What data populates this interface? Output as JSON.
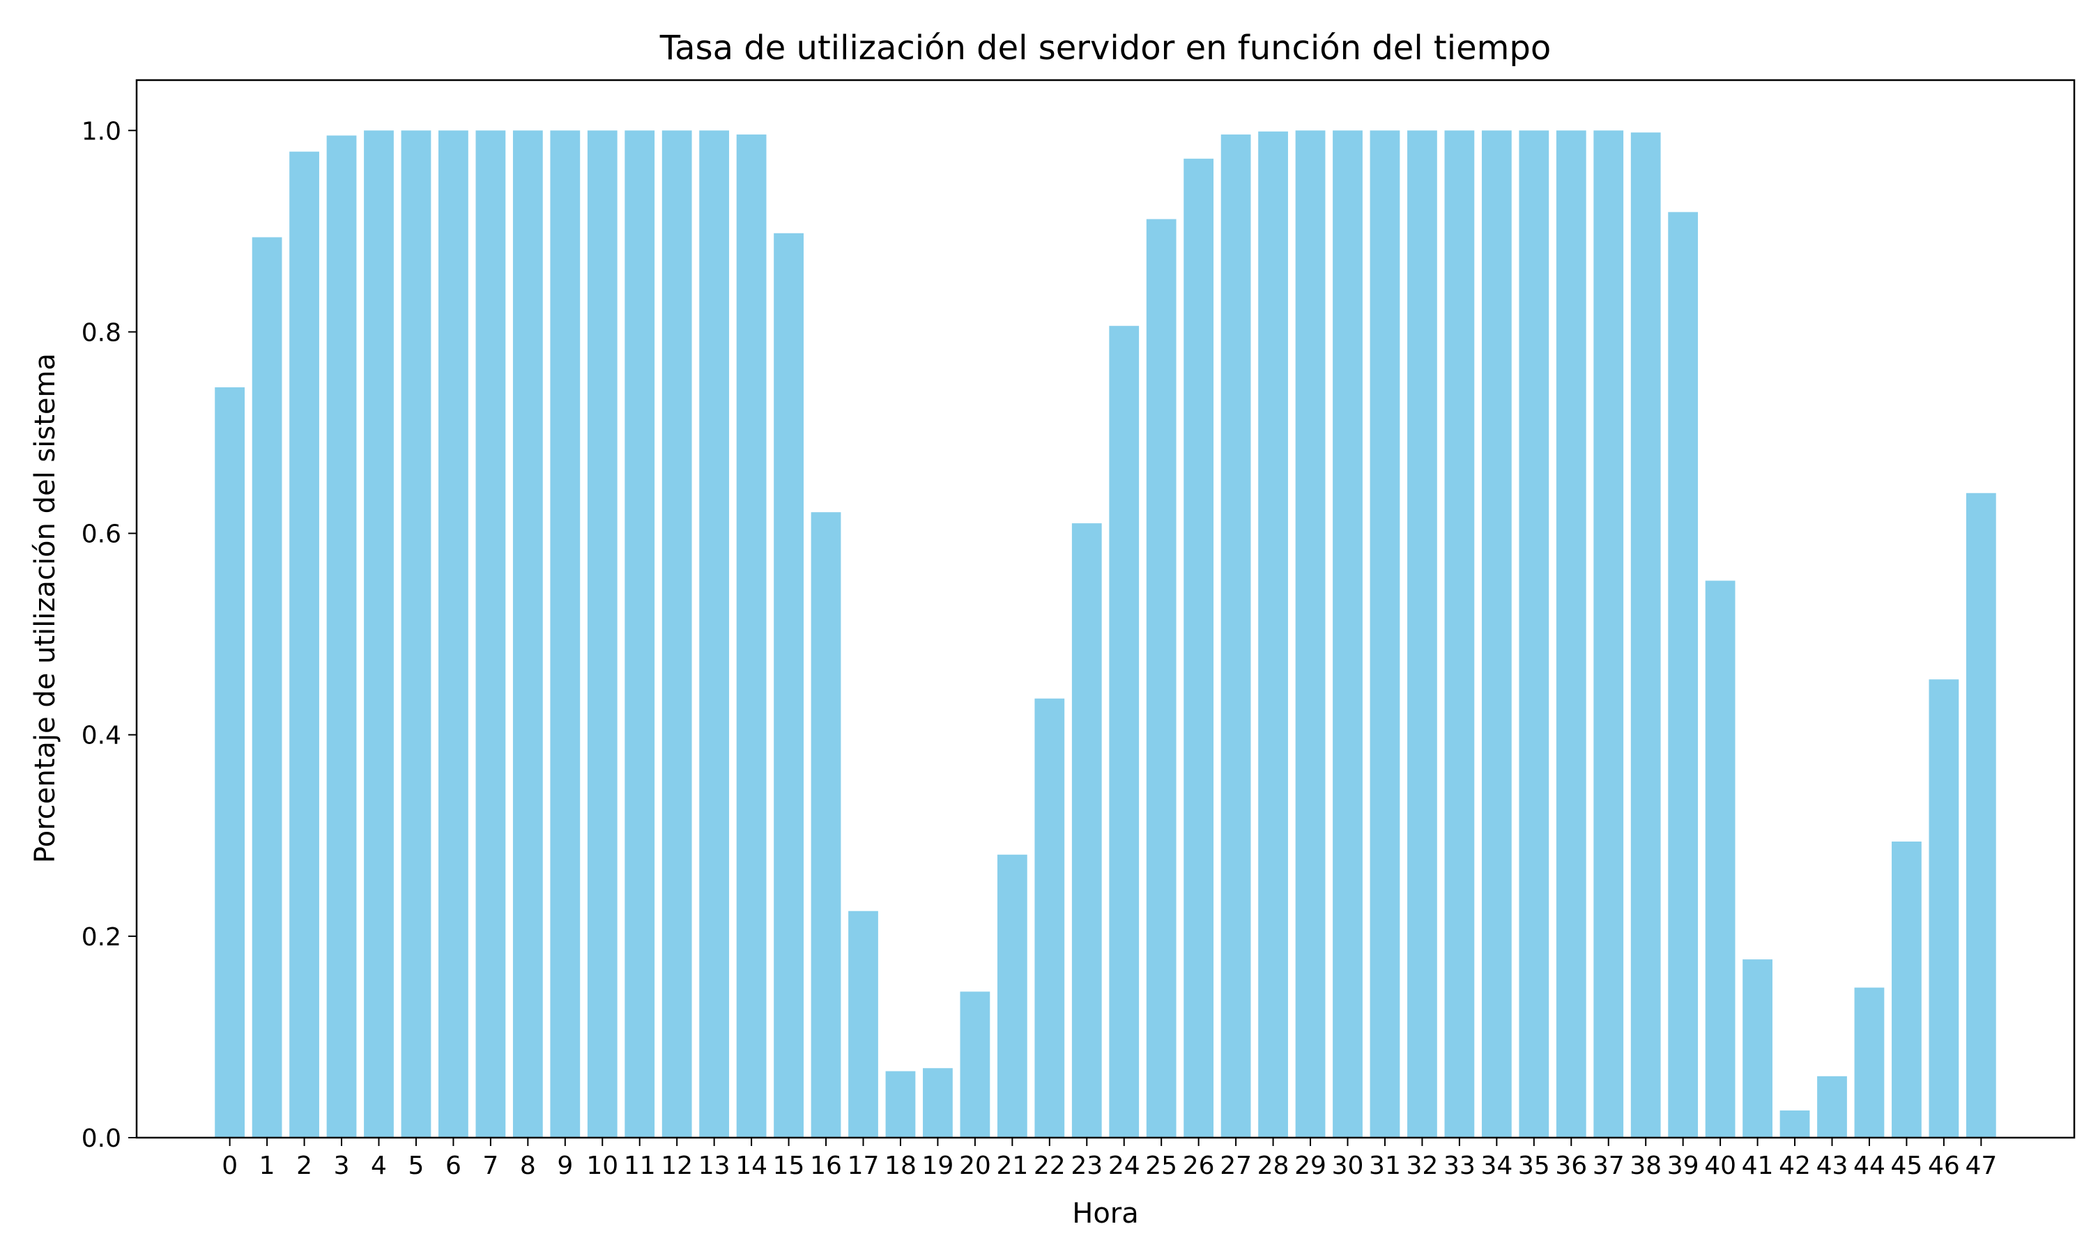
{
  "chart_data": {
    "type": "bar",
    "title": "Tasa de utilización del servidor en función del tiempo",
    "xlabel": "Hora",
    "ylabel": "Porcentaje de utilización del sistema",
    "categories": [
      "0",
      "1",
      "2",
      "3",
      "4",
      "5",
      "6",
      "7",
      "8",
      "9",
      "10",
      "11",
      "12",
      "13",
      "14",
      "15",
      "16",
      "17",
      "18",
      "19",
      "20",
      "21",
      "22",
      "23",
      "24",
      "25",
      "26",
      "27",
      "28",
      "29",
      "30",
      "31",
      "32",
      "33",
      "34",
      "35",
      "36",
      "37",
      "38",
      "39",
      "40",
      "41",
      "42",
      "43",
      "44",
      "45",
      "46",
      "47"
    ],
    "values": [
      0.745,
      0.894,
      0.979,
      0.995,
      1.0,
      1.0,
      1.0,
      1.0,
      1.0,
      1.0,
      1.0,
      1.0,
      1.0,
      1.0,
      0.996,
      0.898,
      0.621,
      0.225,
      0.066,
      0.069,
      0.145,
      0.281,
      0.436,
      0.61,
      0.806,
      0.912,
      0.972,
      0.996,
      0.999,
      1.0,
      1.0,
      1.0,
      1.0,
      1.0,
      1.0,
      1.0,
      1.0,
      1.0,
      0.998,
      0.919,
      0.553,
      0.177,
      0.027,
      0.061,
      0.149,
      0.294,
      0.455,
      0.64
    ],
    "ylim": [
      0,
      1.05
    ],
    "yticks": [
      "0.0",
      "0.2",
      "0.4",
      "0.6",
      "0.8",
      "1.0"
    ],
    "colors": {
      "bar": "#87ceeb",
      "axis": "#000000"
    },
    "grid": false,
    "legend": "none"
  }
}
